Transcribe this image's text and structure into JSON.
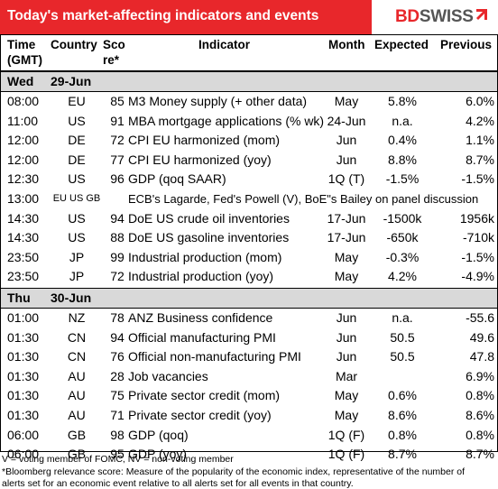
{
  "header": {
    "title": "Today's market-affecting indicators and events",
    "logo_bd": "BD",
    "logo_swiss": "SWISS"
  },
  "columns": {
    "time": [
      "Time",
      "(GMT)"
    ],
    "country": "Country",
    "score": [
      "Sco",
      "re*"
    ],
    "indicator": "Indicator",
    "month": "Month",
    "expected": "Expected",
    "previous": "Previous"
  },
  "days": [
    {
      "weekday": "Wed",
      "date": "29-Jun",
      "rows": [
        {
          "time": "08:00",
          "country": "EU",
          "score": "85",
          "indicator": "M3 Money supply (+ other data)",
          "month": "May",
          "expected": "5.8%",
          "previous": "6.0%"
        },
        {
          "time": "11:00",
          "country": "US",
          "score": "91",
          "indicator": "MBA mortgage applications (% wk)",
          "month": "24-Jun",
          "expected": "n.a.",
          "previous": "4.2%"
        },
        {
          "time": "12:00",
          "country": "DE",
          "score": "72",
          "indicator": "CPI EU harmonized (mom)",
          "month": "Jun",
          "expected": "0.4%",
          "previous": "1.1%"
        },
        {
          "time": "12:00",
          "country": "DE",
          "score": "77",
          "indicator": "CPI EU harmonized (yoy)",
          "month": "Jun",
          "expected": "8.8%",
          "previous": "8.7%"
        },
        {
          "time": "12:30",
          "country": "US",
          "score": "96",
          "indicator": "GDP (qoq SAAR)",
          "month": "1Q (T)",
          "expected": "-1.5%",
          "previous": "-1.5%"
        },
        {
          "time": "13:00",
          "country": "EU US GB",
          "score": "",
          "indicator": "ECB's Lagarde, Fed's Powell (V), BoE\"s Bailey on panel discussion",
          "month": "",
          "expected": "",
          "previous": ""
        },
        {
          "time": "14:30",
          "country": "US",
          "score": "94",
          "indicator": "DoE US crude oil inventories",
          "month": "17-Jun",
          "expected": "-1500k",
          "previous": "1956k"
        },
        {
          "time": "14:30",
          "country": "US",
          "score": "88",
          "indicator": "DoE US gasoline inventories",
          "month": "17-Jun",
          "expected": "-650k",
          "previous": "-710k"
        },
        {
          "time": "23:50",
          "country": "JP",
          "score": "99",
          "indicator": "Industrial production (mom)",
          "month": "May",
          "expected": "-0.3%",
          "previous": "-1.5%"
        },
        {
          "time": "23:50",
          "country": "JP",
          "score": "72",
          "indicator": "Industrial production (yoy)",
          "month": "May",
          "expected": "4.2%",
          "previous": "-4.9%"
        }
      ]
    },
    {
      "weekday": "Thu",
      "date": "30-Jun",
      "rows": [
        {
          "time": "01:00",
          "country": "NZ",
          "score": "78",
          "indicator": "ANZ Business confidence",
          "month": "Jun",
          "expected": "n.a.",
          "previous": "-55.6"
        },
        {
          "time": "01:30",
          "country": "CN",
          "score": "94",
          "indicator": "Official manufacturing PMI",
          "month": "Jun",
          "expected": "50.5",
          "previous": "49.6"
        },
        {
          "time": "01:30",
          "country": "CN",
          "score": "76",
          "indicator": "Official non-manufacturing PMI",
          "month": "Jun",
          "expected": "50.5",
          "previous": "47.8"
        },
        {
          "time": "01:30",
          "country": "AU",
          "score": "28",
          "indicator": "Job vacancies",
          "month": "Mar",
          "expected": "",
          "previous": "6.9%"
        },
        {
          "time": "01:30",
          "country": "AU",
          "score": "75",
          "indicator": "Private sector credit (mom)",
          "month": "May",
          "expected": "0.6%",
          "previous": "0.8%"
        },
        {
          "time": "01:30",
          "country": "AU",
          "score": "71",
          "indicator": "Private sector credit (yoy)",
          "month": "May",
          "expected": "8.6%",
          "previous": "8.6%"
        },
        {
          "time": "06:00",
          "country": "GB",
          "score": "98",
          "indicator": "GDP (qoq)",
          "month": "1Q (F)",
          "expected": "0.8%",
          "previous": "0.8%"
        },
        {
          "time": "06:00",
          "country": "GB",
          "score": "95",
          "indicator": "GDP (yoy)",
          "month": "1Q (F)",
          "expected": "8.7%",
          "previous": "8.7%"
        }
      ]
    }
  ],
  "footer": [
    "V = voting member of FOMC, NV = non-voting member",
    "*Bloomberg relevance score:  Measure of the popularity of the economic index, representative of the number of",
    "alerts set for an economic event relative to all alerts set for all events in that country."
  ],
  "colors": {
    "header_bg": "#e8272b",
    "day_band": "#d9d9d9",
    "grid": "#000000"
  }
}
